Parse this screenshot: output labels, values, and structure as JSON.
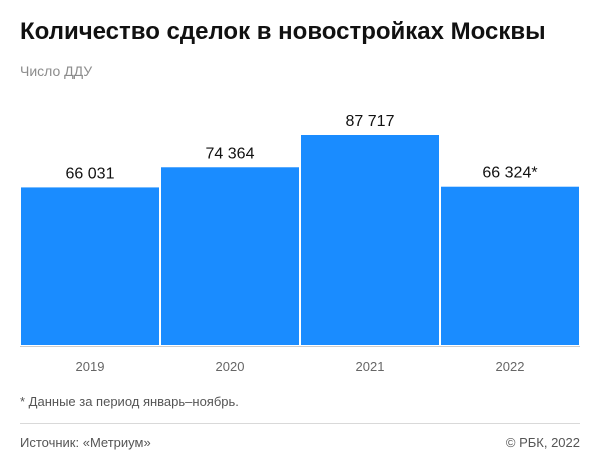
{
  "header": {
    "title": "Количество сделок в новостройках Москвы",
    "subtitle": "Число ДДУ"
  },
  "chart_data": {
    "type": "bar",
    "categories": [
      "2019",
      "2020",
      "2021",
      "2022"
    ],
    "values": [
      66031,
      74364,
      87717,
      66324
    ],
    "value_labels": [
      "66 031",
      "74 364",
      "87 717",
      "66 324*"
    ],
    "ylim": [
      0,
      87717
    ],
    "grid": false,
    "bar_color": "#1a8cff",
    "axis_color": "#cccccc"
  },
  "footer": {
    "footnote": "* Данные за период январь–ноябрь.",
    "source": "Источник: «Метриум»",
    "copyright": "© РБК, 2022"
  }
}
